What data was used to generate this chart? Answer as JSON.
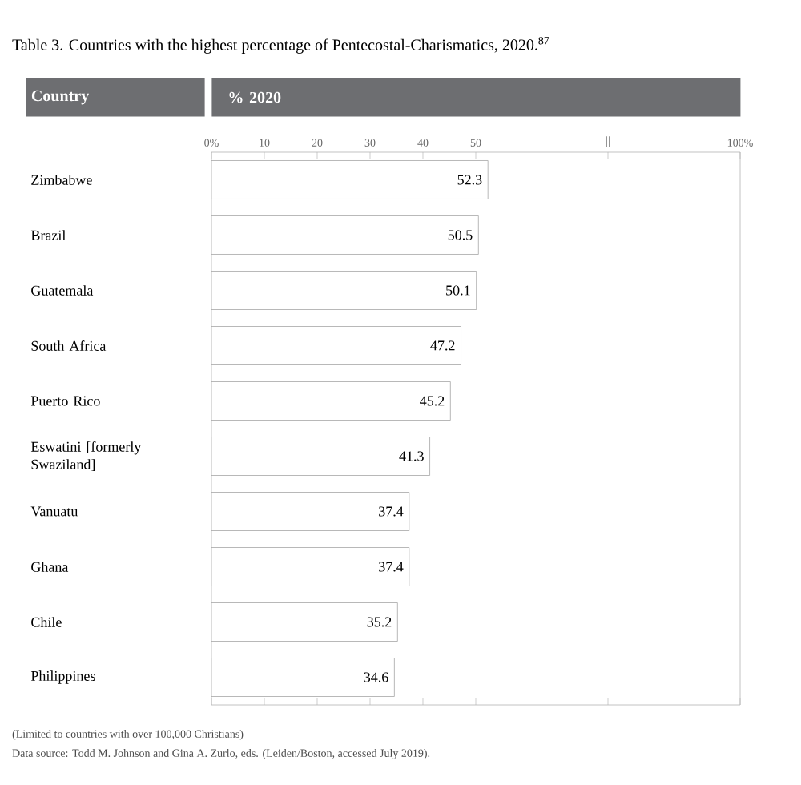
{
  "chart_data": {
    "type": "bar",
    "orientation": "horizontal",
    "title": "Table 3. Countries with the highest percentage of Pentecostal-Charismatics, 2020.$^{87}$",
    "xlabel": "% 2020",
    "ylabel": "Country",
    "categories": [
      "Zimbabwe",
      "Brazil",
      "Guatemala",
      "South Africa",
      "Puerto Rico",
      "Eswatini [formerly Swaziland]",
      "Vanuatu",
      "Ghana",
      "Chile",
      "Philippines"
    ],
    "values": [
      52.3,
      50.5,
      50.1,
      47.2,
      45.2,
      41.3,
      37.4,
      37.4,
      35.2,
      34.6
    ],
    "color": "#ffffff",
    "data_labels": true,
    "xlim": [
      0,
      100
    ],
    "xticks": [
      {
        "value": 0,
        "label": "0%"
      },
      10,
      20,
      30,
      40,
      50,
      {
        "value": 75,
        "label": "||"
      },
      {
        "value": 100,
        "label": "100%"
      }
    ],
    "grid": false,
    "annotations": [
      "(Limited to countries with over 100,000 Christians)",
      "Data source: Todd M. Johnson and Gina A. Zurlo, eds. (Leiden/Boston, accessed July 2019)."
    ]
  }
}
